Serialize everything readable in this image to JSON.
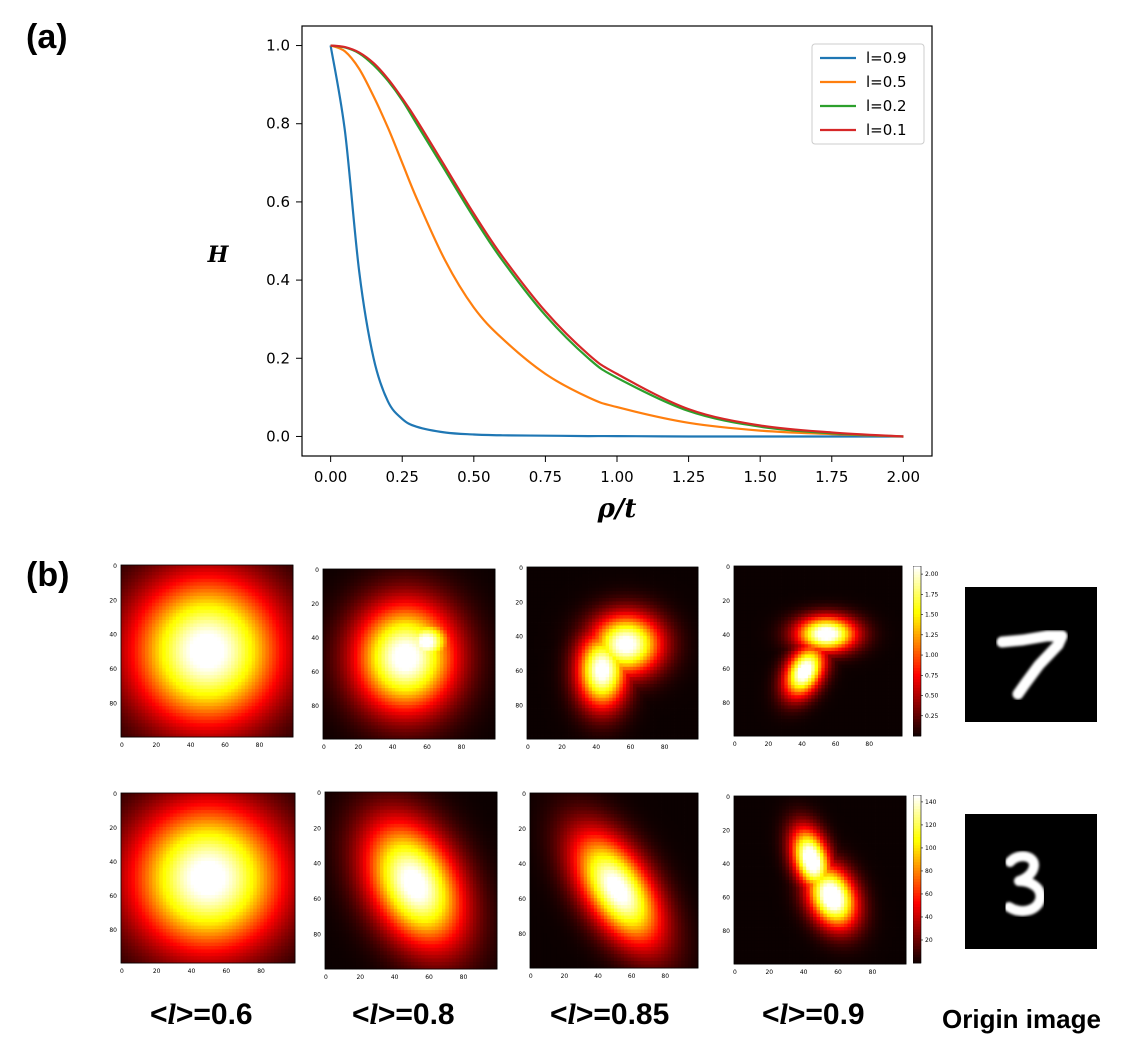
{
  "labels": {
    "panel_a": "(a)",
    "panel_b": "(b)"
  },
  "chart_data": {
    "type": "line",
    "xlabel": "ρ/t",
    "ylabel": "H",
    "xlim": [
      -0.1,
      2.1
    ],
    "ylim": [
      -0.05,
      1.05
    ],
    "xticks": [
      "0.00",
      "0.25",
      "0.50",
      "0.75",
      "1.00",
      "1.25",
      "1.50",
      "1.75",
      "2.00"
    ],
    "yticks": [
      "0.0",
      "0.2",
      "0.4",
      "0.6",
      "0.8",
      "1.0"
    ],
    "legend_position": "top-right",
    "grid": false,
    "x": [
      0.0,
      0.05,
      0.1,
      0.15,
      0.2,
      0.25,
      0.3,
      0.4,
      0.5,
      0.6,
      0.75,
      0.9,
      1.0,
      1.25,
      1.5,
      1.75,
      2.0
    ],
    "series": [
      {
        "name": "l=0.9",
        "color": "#1f77b4",
        "values": [
          1.0,
          0.78,
          0.42,
          0.2,
          0.09,
          0.045,
          0.025,
          0.01,
          0.005,
          0.003,
          0.002,
          0.001,
          0.001,
          0.0,
          0.0,
          0.0,
          0.0
        ]
      },
      {
        "name": "l=0.5",
        "color": "#ff7f0e",
        "values": [
          1.0,
          0.985,
          0.94,
          0.87,
          0.79,
          0.7,
          0.61,
          0.45,
          0.33,
          0.25,
          0.16,
          0.1,
          0.075,
          0.035,
          0.015,
          0.006,
          0.0
        ]
      },
      {
        "name": "l=0.2",
        "color": "#2ca02c",
        "values": [
          1.0,
          0.995,
          0.98,
          0.95,
          0.91,
          0.86,
          0.8,
          0.68,
          0.56,
          0.45,
          0.31,
          0.2,
          0.15,
          0.065,
          0.025,
          0.008,
          0.0
        ]
      },
      {
        "name": "l=0.1",
        "color": "#d62728",
        "values": [
          1.0,
          0.996,
          0.982,
          0.955,
          0.915,
          0.865,
          0.81,
          0.69,
          0.57,
          0.46,
          0.32,
          0.21,
          0.16,
          0.07,
          0.028,
          0.01,
          0.0
        ]
      }
    ]
  },
  "heatmaps": {
    "tick_labels": [
      "0",
      "20",
      "40",
      "60",
      "80"
    ],
    "colorbar_row1_ticks": [
      "2.00",
      "1.75",
      "1.50",
      "1.25",
      "1.00",
      "0.75",
      "0.50",
      "0.25"
    ],
    "colorbar_row2_ticks": [
      "140",
      "120",
      "100",
      "80",
      "60",
      "40",
      "20"
    ],
    "captions": [
      {
        "prefix": "<",
        "var": "l",
        "suffix": ">=0.6"
      },
      {
        "prefix": "<",
        "var": "l",
        "suffix": ">=0.8"
      },
      {
        "prefix": "<",
        "var": "l",
        "suffix": ">=0.85"
      },
      {
        "prefix": "<",
        "var": "l",
        "suffix": ">=0.9"
      }
    ],
    "origin_caption": "Origin image",
    "origin_digits": [
      "7",
      "3"
    ]
  }
}
